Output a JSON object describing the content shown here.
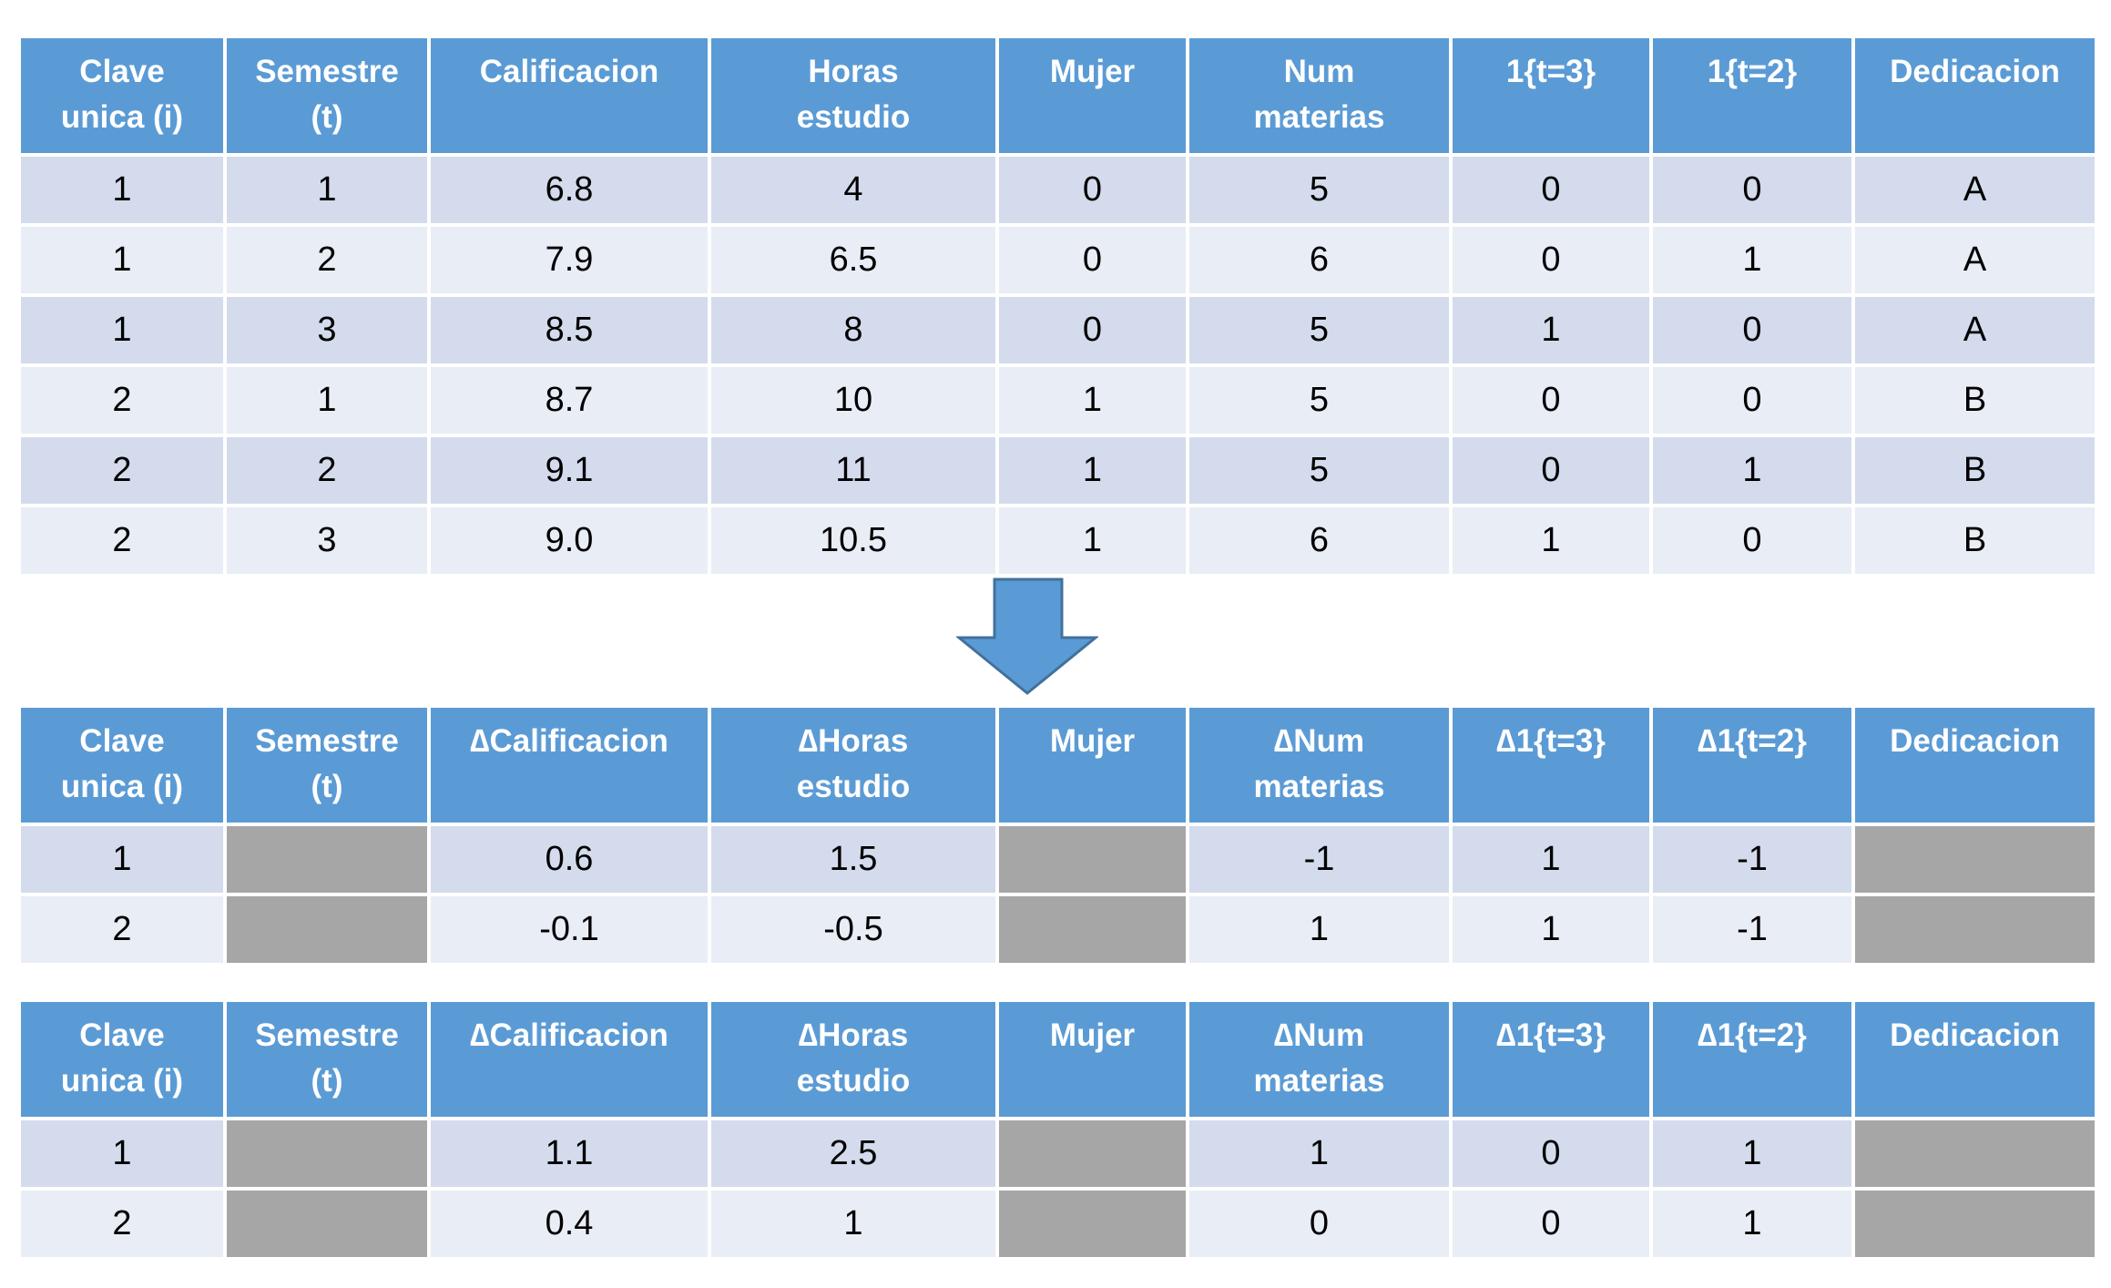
{
  "colors": {
    "page_bg": "#ffffff",
    "header_bg": "#5b9bd5",
    "header_text": "#ffffff",
    "cell_text": "#000000",
    "band_dark": "#d3dbec",
    "band_light": "#e9edf6",
    "gray_cell": "#a6a6a6",
    "arrow_fill": "#5b9bd5",
    "arrow_border": "#41719c"
  },
  "arrow": {
    "name": "down-arrow",
    "direction": "down"
  },
  "tables": [
    {
      "name": "original-panel-table",
      "headers": [
        "Clave\nunica (i)",
        "Semestre\n(t)",
        "Calificacion",
        "Horas\nestudio",
        "Mujer",
        "Num\nmaterias",
        "1{t=3}",
        "1{t=2}",
        "Dedicacion"
      ],
      "rows": [
        [
          "1",
          "1",
          "6.8",
          "4",
          "0",
          "5",
          "0",
          "0",
          "A"
        ],
        [
          "1",
          "2",
          "7.9",
          "6.5",
          "0",
          "6",
          "0",
          "1",
          "A"
        ],
        [
          "1",
          "3",
          "8.5",
          "8",
          "0",
          "5",
          "1",
          "0",
          "A"
        ],
        [
          "2",
          "1",
          "8.7",
          "10",
          "1",
          "5",
          "0",
          "0",
          "B"
        ],
        [
          "2",
          "2",
          "9.1",
          "11",
          "1",
          "5",
          "0",
          "1",
          "B"
        ],
        [
          "2",
          "3",
          "9.0",
          "10.5",
          "1",
          "6",
          "1",
          "0",
          "B"
        ]
      ]
    },
    {
      "name": "first-difference-table-1",
      "headers": [
        "Clave\nunica (i)",
        "Semestre\n(t)",
        "∆Calificacion",
        "∆Horas\nestudio",
        "Mujer",
        "∆Num\nmaterias",
        "∆1{t=3}",
        "∆1{t=2}",
        "Dedicacion"
      ],
      "rows": [
        [
          "1",
          null,
          "0.6",
          "1.5",
          null,
          "-1",
          "1",
          "-1",
          null
        ],
        [
          "2",
          null,
          "-0.1",
          "-0.5",
          null,
          "1",
          "1",
          "-1",
          null
        ]
      ]
    },
    {
      "name": "first-difference-table-2",
      "headers": [
        "Clave\nunica (i)",
        "Semestre\n(t)",
        "∆Calificacion",
        "∆Horas\nestudio",
        "Mujer",
        "∆Num\nmaterias",
        "∆1{t=3}",
        "∆1{t=2}",
        "Dedicacion"
      ],
      "rows": [
        [
          "1",
          null,
          "1.1",
          "2.5",
          null,
          "1",
          "0",
          "1",
          null
        ],
        [
          "2",
          null,
          "0.4",
          "1",
          null,
          "0",
          "0",
          "1",
          null
        ]
      ]
    }
  ]
}
